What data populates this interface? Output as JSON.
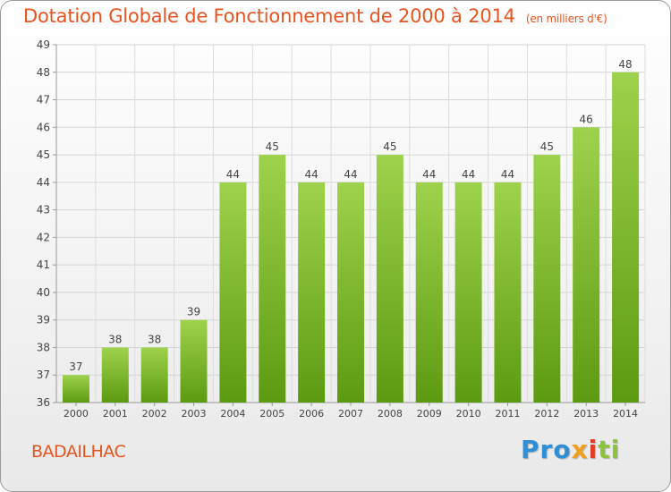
{
  "title": "Dotation Globale de Fonctionnement de 2000 à 2014",
  "subtitle": "(en milliers d'€)",
  "commune": "BADAILHAC",
  "logo": {
    "p1": "Pro",
    "p2": "x",
    "p3": "i",
    "p4": "ti"
  },
  "colors": {
    "title": "#e8541f",
    "bar_light": "#9fd24c",
    "bar_dark": "#5c9a12"
  },
  "chart_data": {
    "type": "bar",
    "title": "Dotation Globale de Fonctionnement de 2000 à 2014",
    "ylabel": "en milliers d'€",
    "categories": [
      "2000",
      "2001",
      "2002",
      "2003",
      "2004",
      "2005",
      "2006",
      "2007",
      "2008",
      "2009",
      "2010",
      "2011",
      "2012",
      "2013",
      "2014"
    ],
    "values": [
      37,
      38,
      38,
      39,
      44,
      45,
      44,
      44,
      45,
      44,
      44,
      44,
      45,
      46,
      48
    ],
    "ylim": [
      36,
      49
    ],
    "yticks": [
      36,
      37,
      38,
      39,
      40,
      41,
      42,
      43,
      44,
      45,
      46,
      47,
      48,
      49
    ],
    "grid": true
  }
}
